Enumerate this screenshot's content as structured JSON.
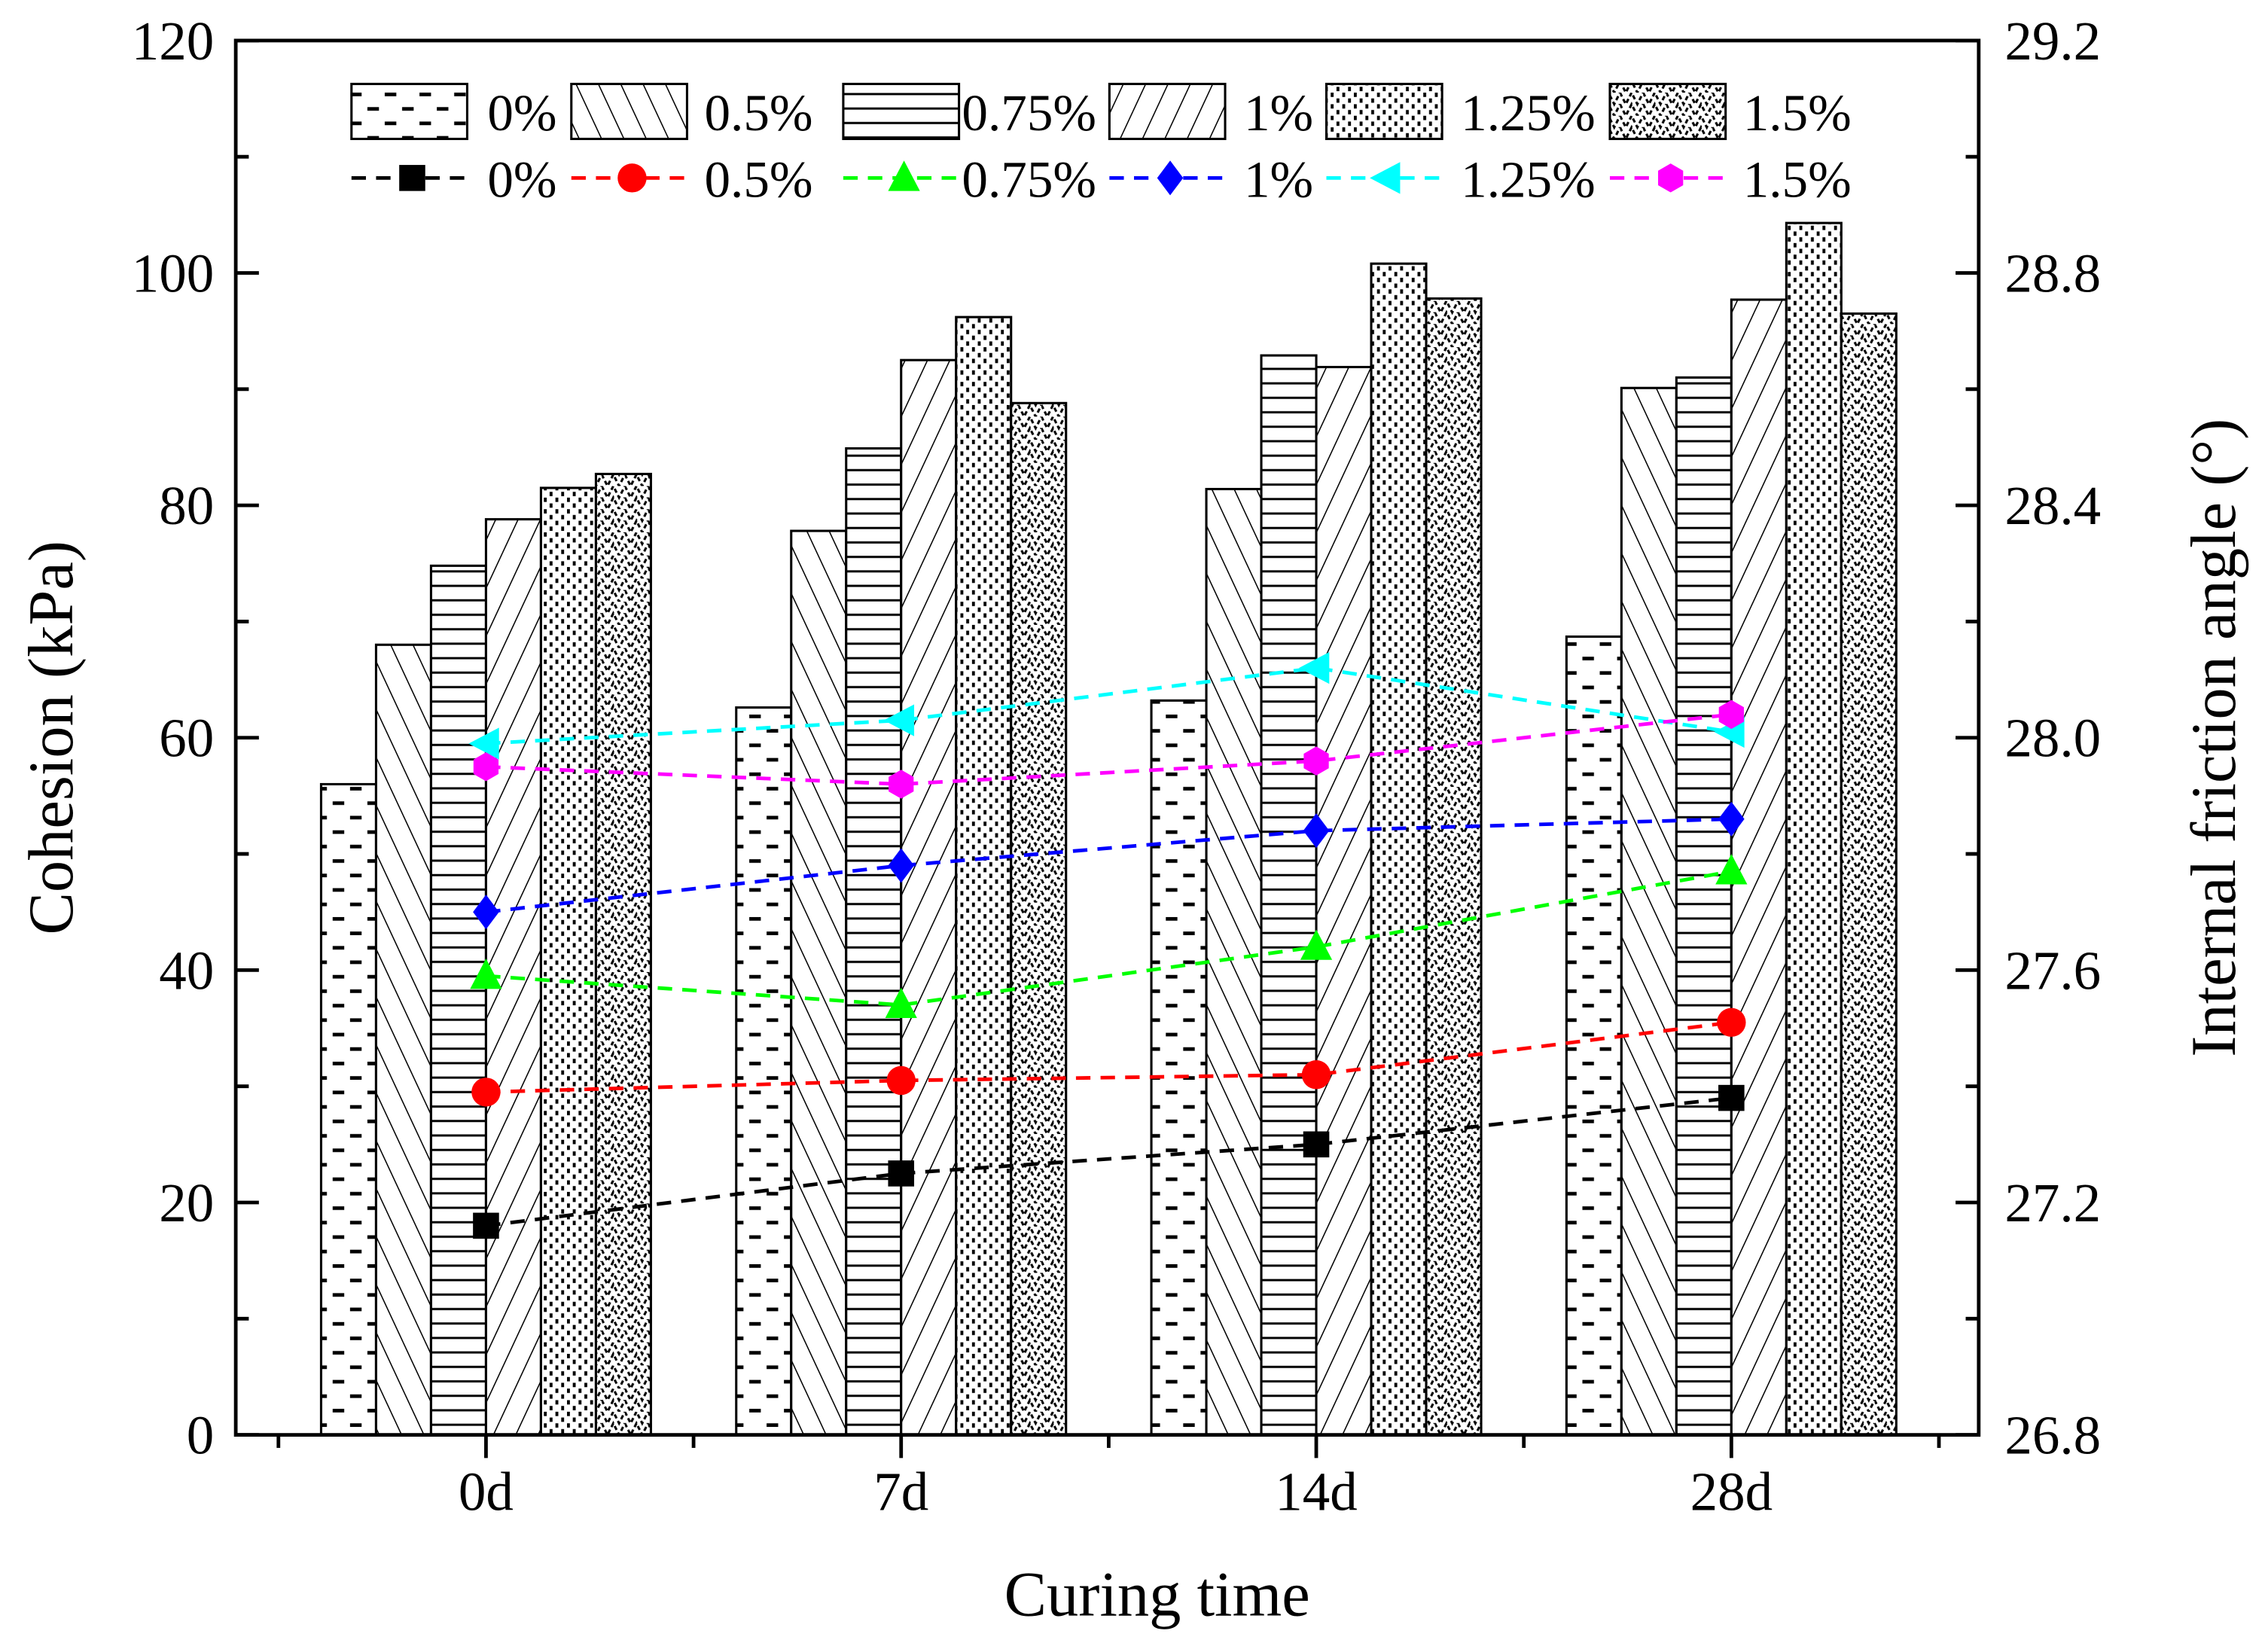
{
  "chart_data": {
    "type": "bar",
    "xlabel": "Curing time",
    "ylabel": "Cohesion (kPa)",
    "y2label": "Internal friction angle (°)",
    "categories": [
      "0d",
      "7d",
      "14d",
      "28d"
    ],
    "ylim": [
      0,
      120
    ],
    "yticks": [
      "0",
      "20",
      "40",
      "60",
      "80",
      "100",
      "120"
    ],
    "y2lim": [
      26.8,
      29.2
    ],
    "y2ticks": [
      "26.8",
      "27.2",
      "27.6",
      "28.0",
      "28.4",
      "28.8",
      "29.2"
    ],
    "grid": false,
    "legend_position": "top",
    "bar_series": [
      {
        "name": "0%",
        "pattern": "dashes",
        "values": [
          56.0,
          62.6,
          63.2,
          68.7
        ]
      },
      {
        "name": "0.5%",
        "pattern": "backslash",
        "values": [
          68.0,
          77.8,
          81.4,
          90.1
        ]
      },
      {
        "name": "0.75%",
        "pattern": "horizontal",
        "values": [
          74.8,
          84.9,
          92.9,
          91.0
        ]
      },
      {
        "name": "1%",
        "pattern": "slash",
        "values": [
          78.8,
          92.5,
          91.9,
          97.7
        ]
      },
      {
        "name": "1.25%",
        "pattern": "dots",
        "values": [
          81.5,
          96.2,
          100.8,
          104.3
        ]
      },
      {
        "name": "1.5%",
        "pattern": "zigzag",
        "values": [
          82.7,
          88.8,
          97.8,
          96.5
        ]
      }
    ],
    "line_series": [
      {
        "name": "0%",
        "color": "#000000",
        "marker": "square",
        "values": [
          27.16,
          27.25,
          27.3,
          27.38
        ]
      },
      {
        "name": "0.5%",
        "color": "#ff0000",
        "marker": "circle",
        "values": [
          27.39,
          27.41,
          27.42,
          27.51
        ]
      },
      {
        "name": "0.75%",
        "color": "#00ff00",
        "marker": "triangle-up",
        "values": [
          27.59,
          27.54,
          27.64,
          27.77
        ]
      },
      {
        "name": "1%",
        "color": "#0000ff",
        "marker": "diamond",
        "values": [
          27.7,
          27.78,
          27.84,
          27.86
        ]
      },
      {
        "name": "1.25%",
        "color": "#00ffff",
        "marker": "triangle-left",
        "values": [
          27.99,
          28.03,
          28.12,
          28.01
        ]
      },
      {
        "name": "1.5%",
        "color": "#ff00ff",
        "marker": "hexagon",
        "values": [
          27.95,
          27.92,
          27.96,
          28.04
        ]
      }
    ]
  }
}
